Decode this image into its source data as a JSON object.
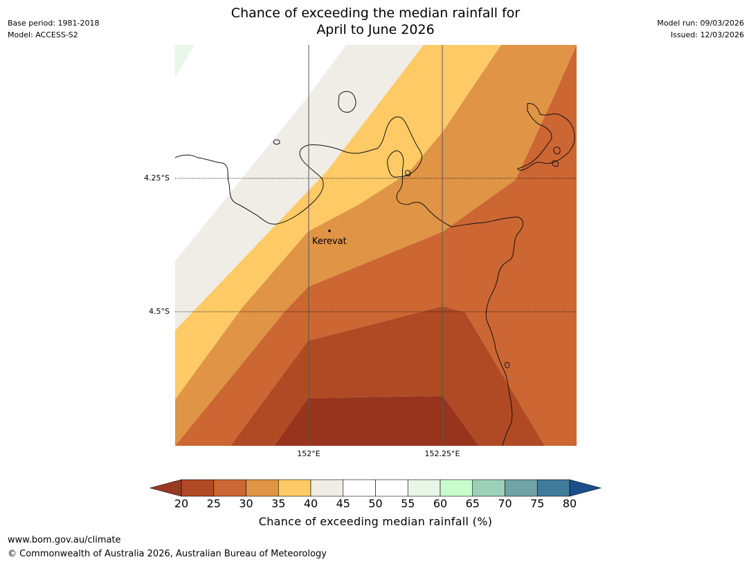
{
  "header": {
    "title_line1": "Chance of exceeding the median rainfall for",
    "title_line2": "April to June 2026",
    "base_period": "Base period: 1981-2018",
    "model": "Model: ACCESS-S2",
    "model_run": "Model run: 09/03/2026",
    "issued": "Issued: 12/03/2026"
  },
  "map": {
    "lat_labels": [
      "4.25°S",
      "4.5°S"
    ],
    "lon_labels": [
      "152°E",
      "152.25°E"
    ],
    "town": "Kerevat"
  },
  "colorbar": {
    "ticks": [
      "20",
      "25",
      "30",
      "35",
      "40",
      "45",
      "50",
      "55",
      "60",
      "65",
      "70",
      "75",
      "80"
    ],
    "label": "Chance of exceeding median rainfall (%)",
    "colors": {
      "lt20": "#9a3a22",
      "c20_25": "#b04a24",
      "c25_30": "#cc6633",
      "c30_35": "#e09445",
      "c35_40": "#fdca66",
      "c40_45": "#f0ece6",
      "c45_50": "#ffffff",
      "c50_55": "#ffffff",
      "c55_60": "#e8f6e8",
      "c60_65": "#c8fccc",
      "c65_70": "#9dd0b8",
      "c70_75": "#6fa3a6",
      "c75_80": "#417b9a",
      "gt80": "#1a4f8a"
    }
  },
  "footer": {
    "url": "www.bom.gov.au/climate",
    "copyright": "© Commonwealth of Australia 2026, Australian Bureau of Meteorology"
  }
}
